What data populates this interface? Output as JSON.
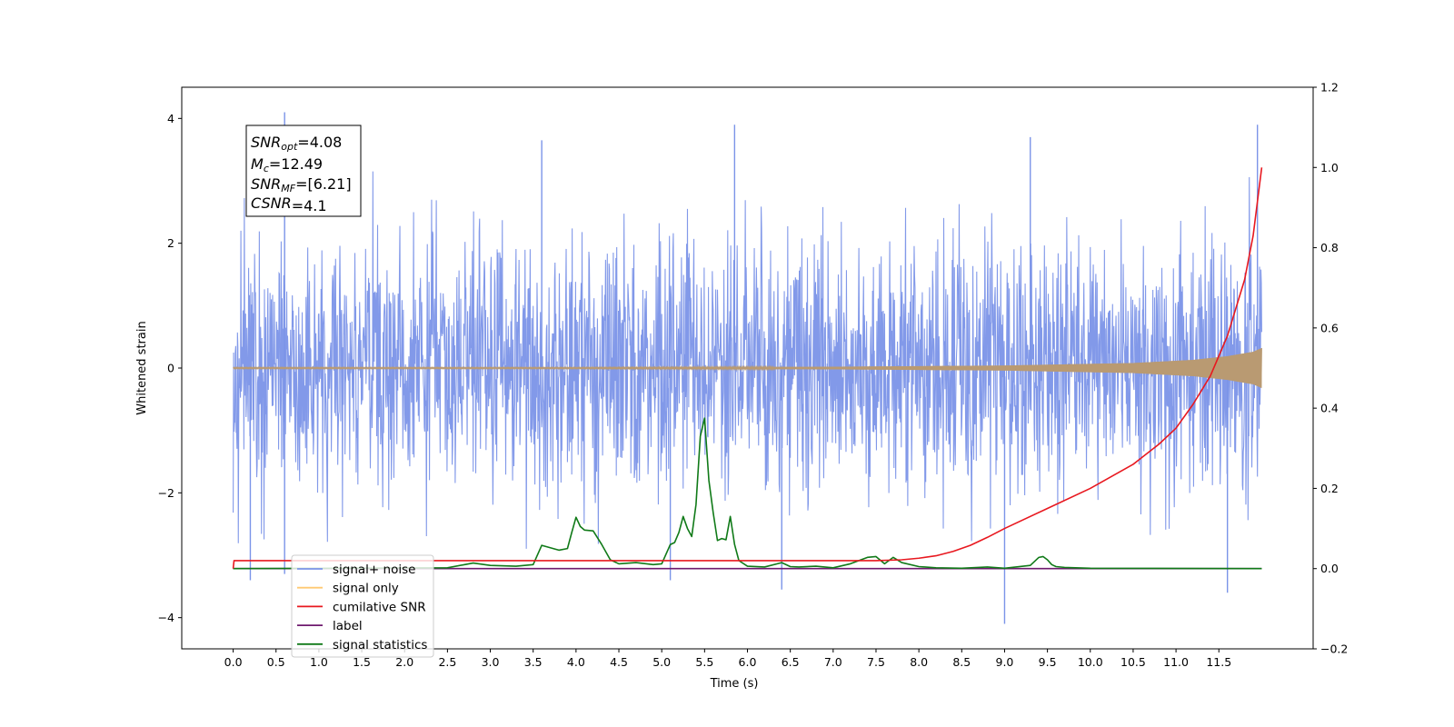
{
  "chart_data": {
    "type": "line",
    "xlabel": "Time (s)",
    "ylabel_left": "Whitened strain",
    "ylabel_right": "",
    "xlim": [
      -0.6,
      12.6
    ],
    "ylim_left": [
      -4.5,
      4.5
    ],
    "ylim_right": [
      -0.2,
      1.2
    ],
    "x_ticks": [
      "0.0",
      "0.5",
      "1.0",
      "1.5",
      "2.0",
      "2.5",
      "3.0",
      "3.5",
      "4.0",
      "4.5",
      "5.0",
      "5.5",
      "6.0",
      "6.5",
      "7.0",
      "7.5",
      "8.0",
      "8.5",
      "9.0",
      "9.5",
      "10.0",
      "10.5",
      "11.0",
      "11.5"
    ],
    "y_ticks_left": [
      "4",
      "2",
      "0",
      "−2",
      "−4"
    ],
    "y_ticks_right": [
      "1.2",
      "1.0",
      "0.8",
      "0.6",
      "0.4",
      "0.2",
      "0.0",
      "−0.2"
    ],
    "grid": false,
    "legend": {
      "placement": "lower-left",
      "entries": [
        {
          "label": "signal+ noise",
          "color": "#7b94e8"
        },
        {
          "label": "signal only",
          "color": "#ffc972"
        },
        {
          "label": "cumilative SNR",
          "color": "#e8181f"
        },
        {
          "label": "label",
          "color": "#6e1a6e"
        },
        {
          "label": "signal statistics",
          "color": "#107a18"
        }
      ]
    },
    "annotation": {
      "lines": [
        {
          "base": "SNR",
          "sub": "opt",
          "value": "=4.08"
        },
        {
          "base": "M",
          "sub": "c",
          "value": "=12.49"
        },
        {
          "base": "SNR",
          "sub": "MF",
          "value": "=[6.21]"
        },
        {
          "base": "CSNR",
          "sub": "",
          "value": "=4.1"
        }
      ]
    },
    "series": [
      {
        "name": "signal+ noise",
        "axis": "left",
        "style": "noise band",
        "x_range": [
          0.0,
          12.0
        ],
        "typical_range": [
          -2.4,
          2.6
        ],
        "spikes": [
          [
            0.6,
            4.1
          ],
          [
            0.2,
            -3.4
          ],
          [
            0.6,
            -3.3
          ],
          [
            3.6,
            3.65
          ],
          [
            5.1,
            -3.4
          ],
          [
            6.4,
            -3.55
          ],
          [
            9.0,
            -4.1
          ],
          [
            11.6,
            -3.6
          ],
          [
            11.95,
            3.9
          ],
          [
            5.85,
            3.9
          ],
          [
            9.3,
            3.7
          ]
        ]
      },
      {
        "name": "signal only",
        "axis": "left",
        "style": "chirp envelope",
        "amplitude": [
          [
            0.0,
            0.01
          ],
          [
            4.0,
            0.01
          ],
          [
            7.0,
            0.02
          ],
          [
            9.0,
            0.04
          ],
          [
            10.5,
            0.08
          ],
          [
            11.2,
            0.13
          ],
          [
            11.6,
            0.19
          ],
          [
            11.9,
            0.26
          ],
          [
            12.0,
            0.32
          ]
        ]
      },
      {
        "name": "cumilative SNR",
        "axis": "right",
        "x": [
          0.0,
          0.01,
          7.5,
          7.8,
          8.0,
          8.2,
          8.4,
          8.6,
          8.8,
          9.0,
          9.5,
          10.0,
          10.5,
          10.8,
          11.0,
          11.2,
          11.4,
          11.6,
          11.8,
          11.9,
          12.0
        ],
        "y": [
          0.0,
          0.02,
          0.02,
          0.022,
          0.026,
          0.032,
          0.043,
          0.058,
          0.078,
          0.1,
          0.15,
          0.2,
          0.26,
          0.31,
          0.35,
          0.41,
          0.48,
          0.58,
          0.72,
          0.83,
          1.0
        ]
      },
      {
        "name": "label",
        "axis": "right",
        "x": [
          0.0,
          12.0
        ],
        "y": [
          0.0,
          0.0
        ]
      },
      {
        "name": "signal statistics",
        "axis": "right",
        "x": [
          0.0,
          2.5,
          2.7,
          2.8,
          3.0,
          3.3,
          3.5,
          3.6,
          3.7,
          3.8,
          3.9,
          3.95,
          4.0,
          4.05,
          4.1,
          4.2,
          4.3,
          4.4,
          4.5,
          4.7,
          4.9,
          5.0,
          5.1,
          5.15,
          5.2,
          5.25,
          5.3,
          5.35,
          5.4,
          5.45,
          5.5,
          5.55,
          5.6,
          5.65,
          5.7,
          5.75,
          5.8,
          5.85,
          5.9,
          6.0,
          6.2,
          6.4,
          6.5,
          6.6,
          6.8,
          7.0,
          7.2,
          7.4,
          7.5,
          7.6,
          7.65,
          7.7,
          7.8,
          8.0,
          8.2,
          8.5,
          8.8,
          9.0,
          9.3,
          9.4,
          9.45,
          9.5,
          9.55,
          9.6,
          9.7,
          10.0,
          12.0
        ],
        "y": [
          0.0,
          0.002,
          0.01,
          0.014,
          0.008,
          0.006,
          0.01,
          0.058,
          0.052,
          0.046,
          0.05,
          0.09,
          0.128,
          0.105,
          0.096,
          0.094,
          0.06,
          0.022,
          0.012,
          0.015,
          0.01,
          0.012,
          0.06,
          0.065,
          0.09,
          0.13,
          0.1,
          0.08,
          0.16,
          0.33,
          0.375,
          0.22,
          0.14,
          0.07,
          0.075,
          0.072,
          0.13,
          0.06,
          0.02,
          0.006,
          0.004,
          0.015,
          0.005,
          0.004,
          0.006,
          0.002,
          0.012,
          0.028,
          0.03,
          0.012,
          0.02,
          0.028,
          0.015,
          0.005,
          0.002,
          0.001,
          0.004,
          0.001,
          0.008,
          0.028,
          0.03,
          0.022,
          0.01,
          0.005,
          0.003,
          0.001,
          0.0
        ]
      }
    ]
  }
}
